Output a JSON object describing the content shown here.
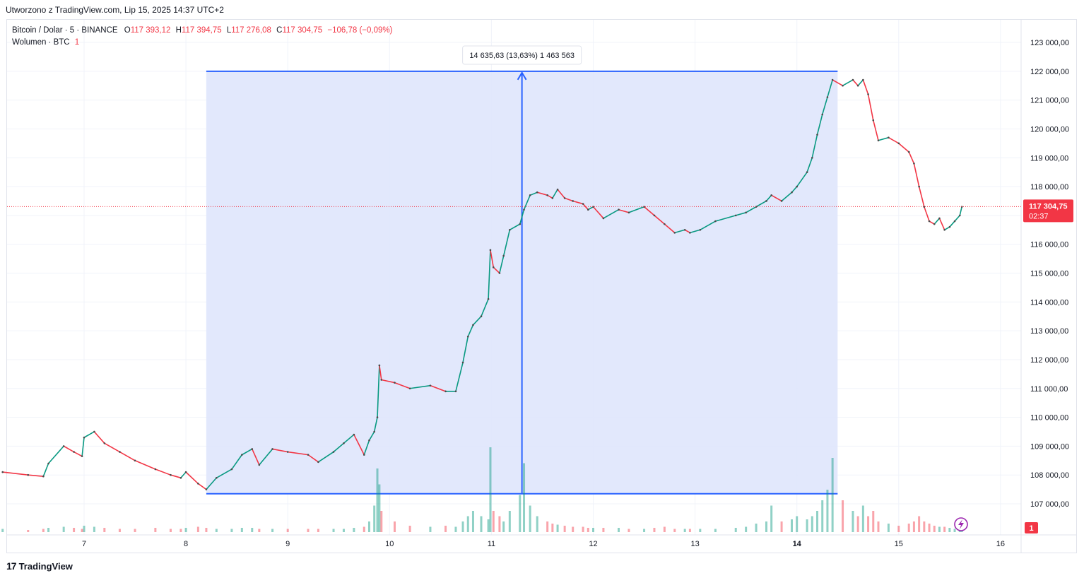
{
  "header": {
    "created": "Utworzono z TradingView.com, Lip 15, 2025 14:37 UTC+2"
  },
  "legend": {
    "symbol": "Bitcoin / Dolar · 5 · BINANCE",
    "o_label": "O",
    "o": "117 393,12",
    "h_label": "H",
    "h": "117 394,75",
    "l_label": "L",
    "l": "117 276,08",
    "c_label": "C",
    "c": "117 304,75",
    "change": "−106,78 (−0,09%)",
    "volume_label": "Wolumen · BTC",
    "volume_value": "1"
  },
  "measure": {
    "label": "14 635,63 (13,63%) 1 463 563",
    "from_price": 107350,
    "to_price": 122000,
    "from_time": 8.2,
    "to_time": 14.4
  },
  "last_price": {
    "value": 117304.75,
    "label": "117 304,75",
    "countdown": "02:37"
  },
  "volume_badge": "1",
  "colors": {
    "up": "#089981",
    "down": "#f23645",
    "measure": "#2962ff",
    "measure_fill": "#dfe6fc"
  },
  "footer": {
    "brand": "TradingView"
  },
  "chart_data": {
    "type": "line",
    "title": "",
    "xlabel": "",
    "ylabel": "",
    "x_ticks": [
      "7",
      "8",
      "9",
      "10",
      "11",
      "12",
      "13",
      "14",
      "15",
      "16"
    ],
    "y_ticks": [
      "123 000,00",
      "122 000,00",
      "121 000,00",
      "120 000,00",
      "119 000,00",
      "118 000,00",
      "117 000,00",
      "116 000,00",
      "115 000,00",
      "114 000,00",
      "113 000,00",
      "112 000,00",
      "111 000,00",
      "110 000,00",
      "109 000,00",
      "108 000,00",
      "107 000,00"
    ],
    "ylim": [
      106500,
      123200
    ],
    "xlim": [
      6.2,
      16.4
    ],
    "grid": true,
    "series": [
      {
        "x": [
          6.2,
          6.45,
          6.6,
          6.65,
          6.8,
          6.9,
          6.98,
          7.0,
          7.1,
          7.2,
          7.35,
          7.5,
          7.7,
          7.85,
          7.95,
          8.0,
          8.12,
          8.2,
          8.3,
          8.45,
          8.55,
          8.65,
          8.72,
          8.85,
          9.0,
          9.2,
          9.3,
          9.45,
          9.55,
          9.65,
          9.75,
          9.8,
          9.85,
          9.88,
          9.9,
          9.92,
          10.05,
          10.2,
          10.4,
          10.55,
          10.65,
          10.72,
          10.77,
          10.82,
          10.9,
          10.97,
          10.99,
          11.02,
          11.08,
          11.12,
          11.18,
          11.28,
          11.32,
          11.38,
          11.45,
          11.55,
          11.6,
          11.65,
          11.72,
          11.8,
          11.9,
          11.95,
          12.0,
          12.1,
          12.25,
          12.35,
          12.5,
          12.6,
          12.7,
          12.8,
          12.9,
          12.95,
          13.05,
          13.2,
          13.4,
          13.5,
          13.6,
          13.7,
          13.75,
          13.85,
          13.95,
          14.0,
          14.1,
          14.15,
          14.2,
          14.25,
          14.3,
          14.35,
          14.45,
          14.55,
          14.6,
          14.65,
          14.7,
          14.75,
          14.8,
          14.9,
          15.0,
          15.1,
          15.15,
          15.2,
          15.25,
          15.3,
          15.35,
          15.4,
          15.45,
          15.5,
          15.55,
          15.6,
          15.62
        ],
        "values": [
          108100,
          108000,
          107950,
          108400,
          109000,
          108800,
          108650,
          109300,
          109500,
          109100,
          108800,
          108500,
          108200,
          108000,
          107900,
          108100,
          107700,
          107500,
          107900,
          108200,
          108700,
          108900,
          108350,
          108900,
          108800,
          108700,
          108450,
          108800,
          109100,
          109400,
          108700,
          109200,
          109500,
          110000,
          111800,
          111300,
          111200,
          111000,
          111100,
          110900,
          110900,
          111900,
          112800,
          113200,
          113500,
          114100,
          115800,
          115200,
          115000,
          115600,
          116500,
          116700,
          117200,
          117700,
          117800,
          117700,
          117600,
          117900,
          117600,
          117500,
          117400,
          117200,
          117300,
          116900,
          117200,
          117100,
          117300,
          117000,
          116700,
          116400,
          116500,
          116400,
          116500,
          116800,
          117000,
          117100,
          117300,
          117500,
          117700,
          117500,
          117800,
          118000,
          118500,
          119000,
          119800,
          120500,
          121100,
          121700,
          121500,
          121700,
          121500,
          121700,
          121200,
          120300,
          119600,
          119700,
          119500,
          119200,
          118800,
          118000,
          117300,
          116800,
          116700,
          116900,
          116500,
          116600,
          116800,
          117000,
          117300
        ],
        "volumes": [
          0.3,
          0.2,
          0.3,
          0.4,
          0.5,
          0.4,
          0.3,
          0.6,
          0.5,
          0.4,
          0.3,
          0.3,
          0.4,
          0.3,
          0.3,
          0.4,
          0.5,
          0.4,
          0.3,
          0.3,
          0.4,
          0.4,
          0.3,
          0.3,
          0.3,
          0.3,
          0.3,
          0.3,
          0.3,
          0.4,
          0.5,
          1.0,
          2.5,
          6.0,
          4.5,
          2.0,
          1.0,
          0.6,
          0.5,
          0.6,
          0.5,
          1.0,
          1.5,
          2.0,
          1.5,
          1.2,
          8.0,
          2.0,
          1.5,
          1.0,
          2.0,
          3.5,
          6.5,
          2.5,
          1.5,
          1.0,
          0.8,
          0.7,
          0.6,
          0.5,
          0.5,
          0.4,
          0.4,
          0.4,
          0.4,
          0.3,
          0.3,
          0.4,
          0.5,
          0.3,
          0.3,
          0.3,
          0.3,
          0.3,
          0.4,
          0.5,
          0.8,
          1.0,
          2.5,
          1.0,
          1.2,
          1.5,
          1.2,
          1.5,
          2.0,
          3.0,
          4.0,
          7.0,
          3.0,
          2.0,
          1.5,
          2.5,
          1.5,
          2.0,
          1.0,
          0.8,
          0.6,
          0.8,
          1.0,
          1.5,
          1.0,
          0.8,
          0.6,
          0.5,
          0.5,
          0.4,
          0.3,
          0.3,
          0.3
        ],
        "name": ""
      }
    ]
  }
}
